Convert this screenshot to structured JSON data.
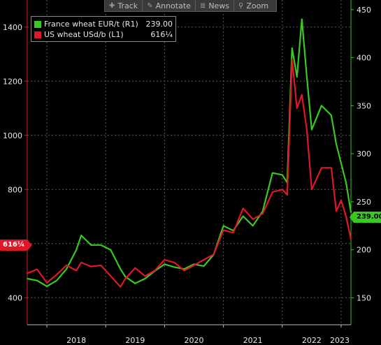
{
  "toolbar": {
    "items": [
      {
        "label": "Track",
        "icon": "crosshair-icon"
      },
      {
        "label": "Annotate",
        "icon": "pencil-icon"
      },
      {
        "label": "News",
        "icon": "news-icon"
      },
      {
        "label": "Zoom",
        "icon": "magnifier-icon"
      }
    ]
  },
  "legend": {
    "items": [
      {
        "name": "France wheat EUR/t (R1)",
        "value": "239.00",
        "color": "#39c922"
      },
      {
        "name": "US wheat USd/b (L1)",
        "value": "616¼",
        "color": "#e0162b"
      }
    ]
  },
  "last_value_flags": {
    "left": "616¼",
    "right": "239.00"
  },
  "chart_data": {
    "type": "line",
    "title": "",
    "xlabel": "",
    "grid": true,
    "x_ticks": [
      "2018",
      "2019",
      "2020",
      "2021",
      "2022",
      "2023"
    ],
    "left_axis": {
      "label": "",
      "ticks": [
        400,
        600,
        800,
        1000,
        1200,
        1400
      ],
      "ylim": [
        300,
        1500
      ],
      "color": "#e0162b"
    },
    "right_axis": {
      "label": "",
      "ticks": [
        150,
        200,
        250,
        300,
        350,
        400,
        450
      ],
      "ylim": [
        122,
        460
      ],
      "color": "#39c922"
    },
    "x_range": [
      "2017-09",
      "2023-03"
    ],
    "series": [
      {
        "name": "US wheat USd/b (L1)",
        "axis": "left",
        "color": "#e0162b",
        "x": [
          "2017-09",
          "2017-11",
          "2018-01",
          "2018-03",
          "2018-05",
          "2018-07",
          "2018-08",
          "2018-10",
          "2018-12",
          "2019-02",
          "2019-04",
          "2019-05",
          "2019-07",
          "2019-09",
          "2019-11",
          "2020-01",
          "2020-03",
          "2020-05",
          "2020-07",
          "2020-09",
          "2020-11",
          "2021-01",
          "2021-03",
          "2021-05",
          "2021-07",
          "2021-09",
          "2021-11",
          "2022-01",
          "2022-02",
          "2022-03",
          "2022-04",
          "2022-05",
          "2022-06",
          "2022-07",
          "2022-09",
          "2022-11",
          "2022-12",
          "2023-01",
          "2023-02",
          "2023-03"
        ],
        "values": [
          490,
          505,
          455,
          485,
          520,
          500,
          530,
          515,
          520,
          480,
          440,
          470,
          510,
          480,
          500,
          540,
          530,
          500,
          520,
          540,
          560,
          650,
          640,
          730,
          690,
          710,
          790,
          800,
          780,
          1280,
          1100,
          1150,
          1020,
          800,
          880,
          880,
          720,
          760,
          700,
          616
        ]
      },
      {
        "name": "France wheat EUR/t (R1)",
        "axis": "right",
        "color": "#39c922",
        "x": [
          "2017-09",
          "2017-11",
          "2018-01",
          "2018-03",
          "2018-05",
          "2018-07",
          "2018-08",
          "2018-10",
          "2018-12",
          "2019-02",
          "2019-04",
          "2019-05",
          "2019-07",
          "2019-09",
          "2019-11",
          "2020-01",
          "2020-03",
          "2020-05",
          "2020-07",
          "2020-09",
          "2020-11",
          "2021-01",
          "2021-03",
          "2021-05",
          "2021-07",
          "2021-09",
          "2021-11",
          "2022-01",
          "2022-02",
          "2022-03",
          "2022-04",
          "2022-05",
          "2022-06",
          "2022-07",
          "2022-09",
          "2022-11",
          "2022-12",
          "2023-01",
          "2023-02",
          "2023-03"
        ],
        "values": [
          170,
          168,
          162,
          168,
          180,
          200,
          215,
          205,
          205,
          200,
          180,
          172,
          165,
          170,
          178,
          185,
          182,
          180,
          185,
          183,
          195,
          225,
          220,
          235,
          225,
          240,
          280,
          278,
          270,
          410,
          380,
          440,
          380,
          325,
          350,
          340,
          310,
          290,
          270,
          239
        ]
      }
    ]
  }
}
